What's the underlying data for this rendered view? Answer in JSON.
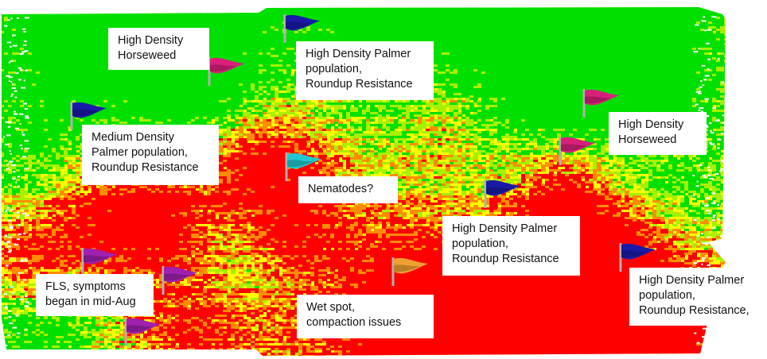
{
  "colors": {
    "low_yield": "#ff0000",
    "below_avg": "#ff8c00",
    "average": "#ffff00",
    "above_avg": "#a8f000",
    "high_yield": "#00e000",
    "no_data": "#ffffff"
  },
  "flag_colors": {
    "blue": "#1a1aa8",
    "pink": "#d8207a",
    "purple": "#a020b0",
    "cyan": "#20c8d0",
    "orange": "#f0a030"
  },
  "annotations": [
    {
      "id": "horseweed-north",
      "text": "High Density\nHorseweed"
    },
    {
      "id": "palmer-north",
      "text": "High Density Palmer\npopulation,\nRoundup Resistance"
    },
    {
      "id": "palmer-medium-west",
      "text": "Medium Density\nPalmer population,\nRoundup Resistance"
    },
    {
      "id": "horseweed-east",
      "text": "High Density\nHorseweed"
    },
    {
      "id": "nematodes",
      "text": "Nematodes?"
    },
    {
      "id": "palmer-center-east",
      "text": "High Density Palmer\npopulation,\nRoundup Resistance"
    },
    {
      "id": "fls",
      "text": "FLS, symptoms\nbegan in mid-Aug"
    },
    {
      "id": "wet-spot",
      "text": "Wet spot,\ncompaction issues"
    },
    {
      "id": "palmer-southeast",
      "text": "High Density Palmer\npopulation,\nRoundup Resistance,"
    }
  ],
  "flags": [
    {
      "id": "flag-blue-north",
      "color": "blue"
    },
    {
      "id": "flag-pink-horseweed-north",
      "color": "pink"
    },
    {
      "id": "flag-blue-west",
      "color": "blue"
    },
    {
      "id": "flag-pink-east-upper",
      "color": "pink"
    },
    {
      "id": "flag-pink-east-lower",
      "color": "pink"
    },
    {
      "id": "flag-cyan-nematodes",
      "color": "cyan"
    },
    {
      "id": "flag-blue-center",
      "color": "blue"
    },
    {
      "id": "flag-blue-southeast",
      "color": "blue"
    },
    {
      "id": "flag-purple-west",
      "color": "purple"
    },
    {
      "id": "flag-purple-fls",
      "color": "purple"
    },
    {
      "id": "flag-purple-south",
      "color": "purple"
    },
    {
      "id": "flag-orange-wet-spot",
      "color": "orange"
    }
  ]
}
